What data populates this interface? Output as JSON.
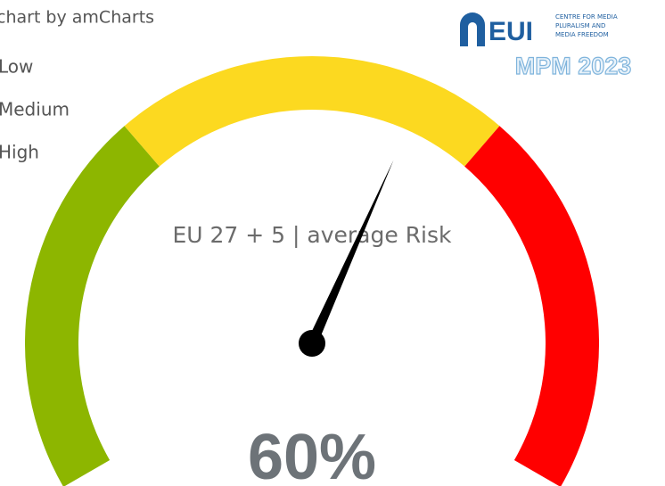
{
  "chart_data": {
    "type": "gauge",
    "credit": "chart by amCharts",
    "title": "EU 27 + 5 | average Risk",
    "value": 60,
    "value_label": "60%",
    "ylim": [
      0,
      100
    ],
    "bands": [
      {
        "name": "Low",
        "color": "#8db600",
        "start": 0,
        "end": 33
      },
      {
        "name": "Medium",
        "color": "#fcd920",
        "start": 33,
        "end": 67
      },
      {
        "name": "High",
        "color": "#ff0000",
        "start": 67,
        "end": 100
      }
    ],
    "logo": {
      "name": "EUI",
      "lines": [
        "CENTRE FOR MEDIA",
        "PLURALISM AND",
        "MEDIA FREEDOM"
      ],
      "edition": "MPM 2023"
    }
  }
}
